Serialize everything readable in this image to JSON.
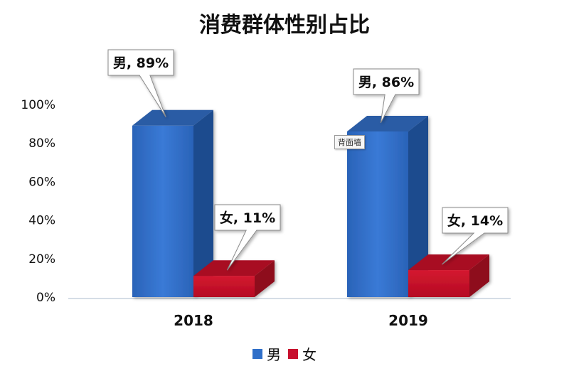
{
  "chart_data": {
    "type": "bar",
    "title": "消费群体性别占比",
    "categories": [
      "2018",
      "2019"
    ],
    "series": [
      {
        "name": "男",
        "values": [
          89,
          86
        ],
        "color": "#2f6fc9",
        "labels": [
          "男, 89%",
          "男, 86%"
        ]
      },
      {
        "name": "女",
        "values": [
          11,
          14
        ],
        "color": "#c8102e",
        "labels": [
          "女, 11%",
          "女, 14%"
        ]
      }
    ],
    "y_ticks": [
      "0%",
      "20%",
      "40%",
      "60%",
      "80%",
      "100%"
    ],
    "ylim": [
      0,
      100
    ],
    "grid": false,
    "legend_position": "bottom"
  },
  "tooltip": {
    "text": "背面墙"
  }
}
